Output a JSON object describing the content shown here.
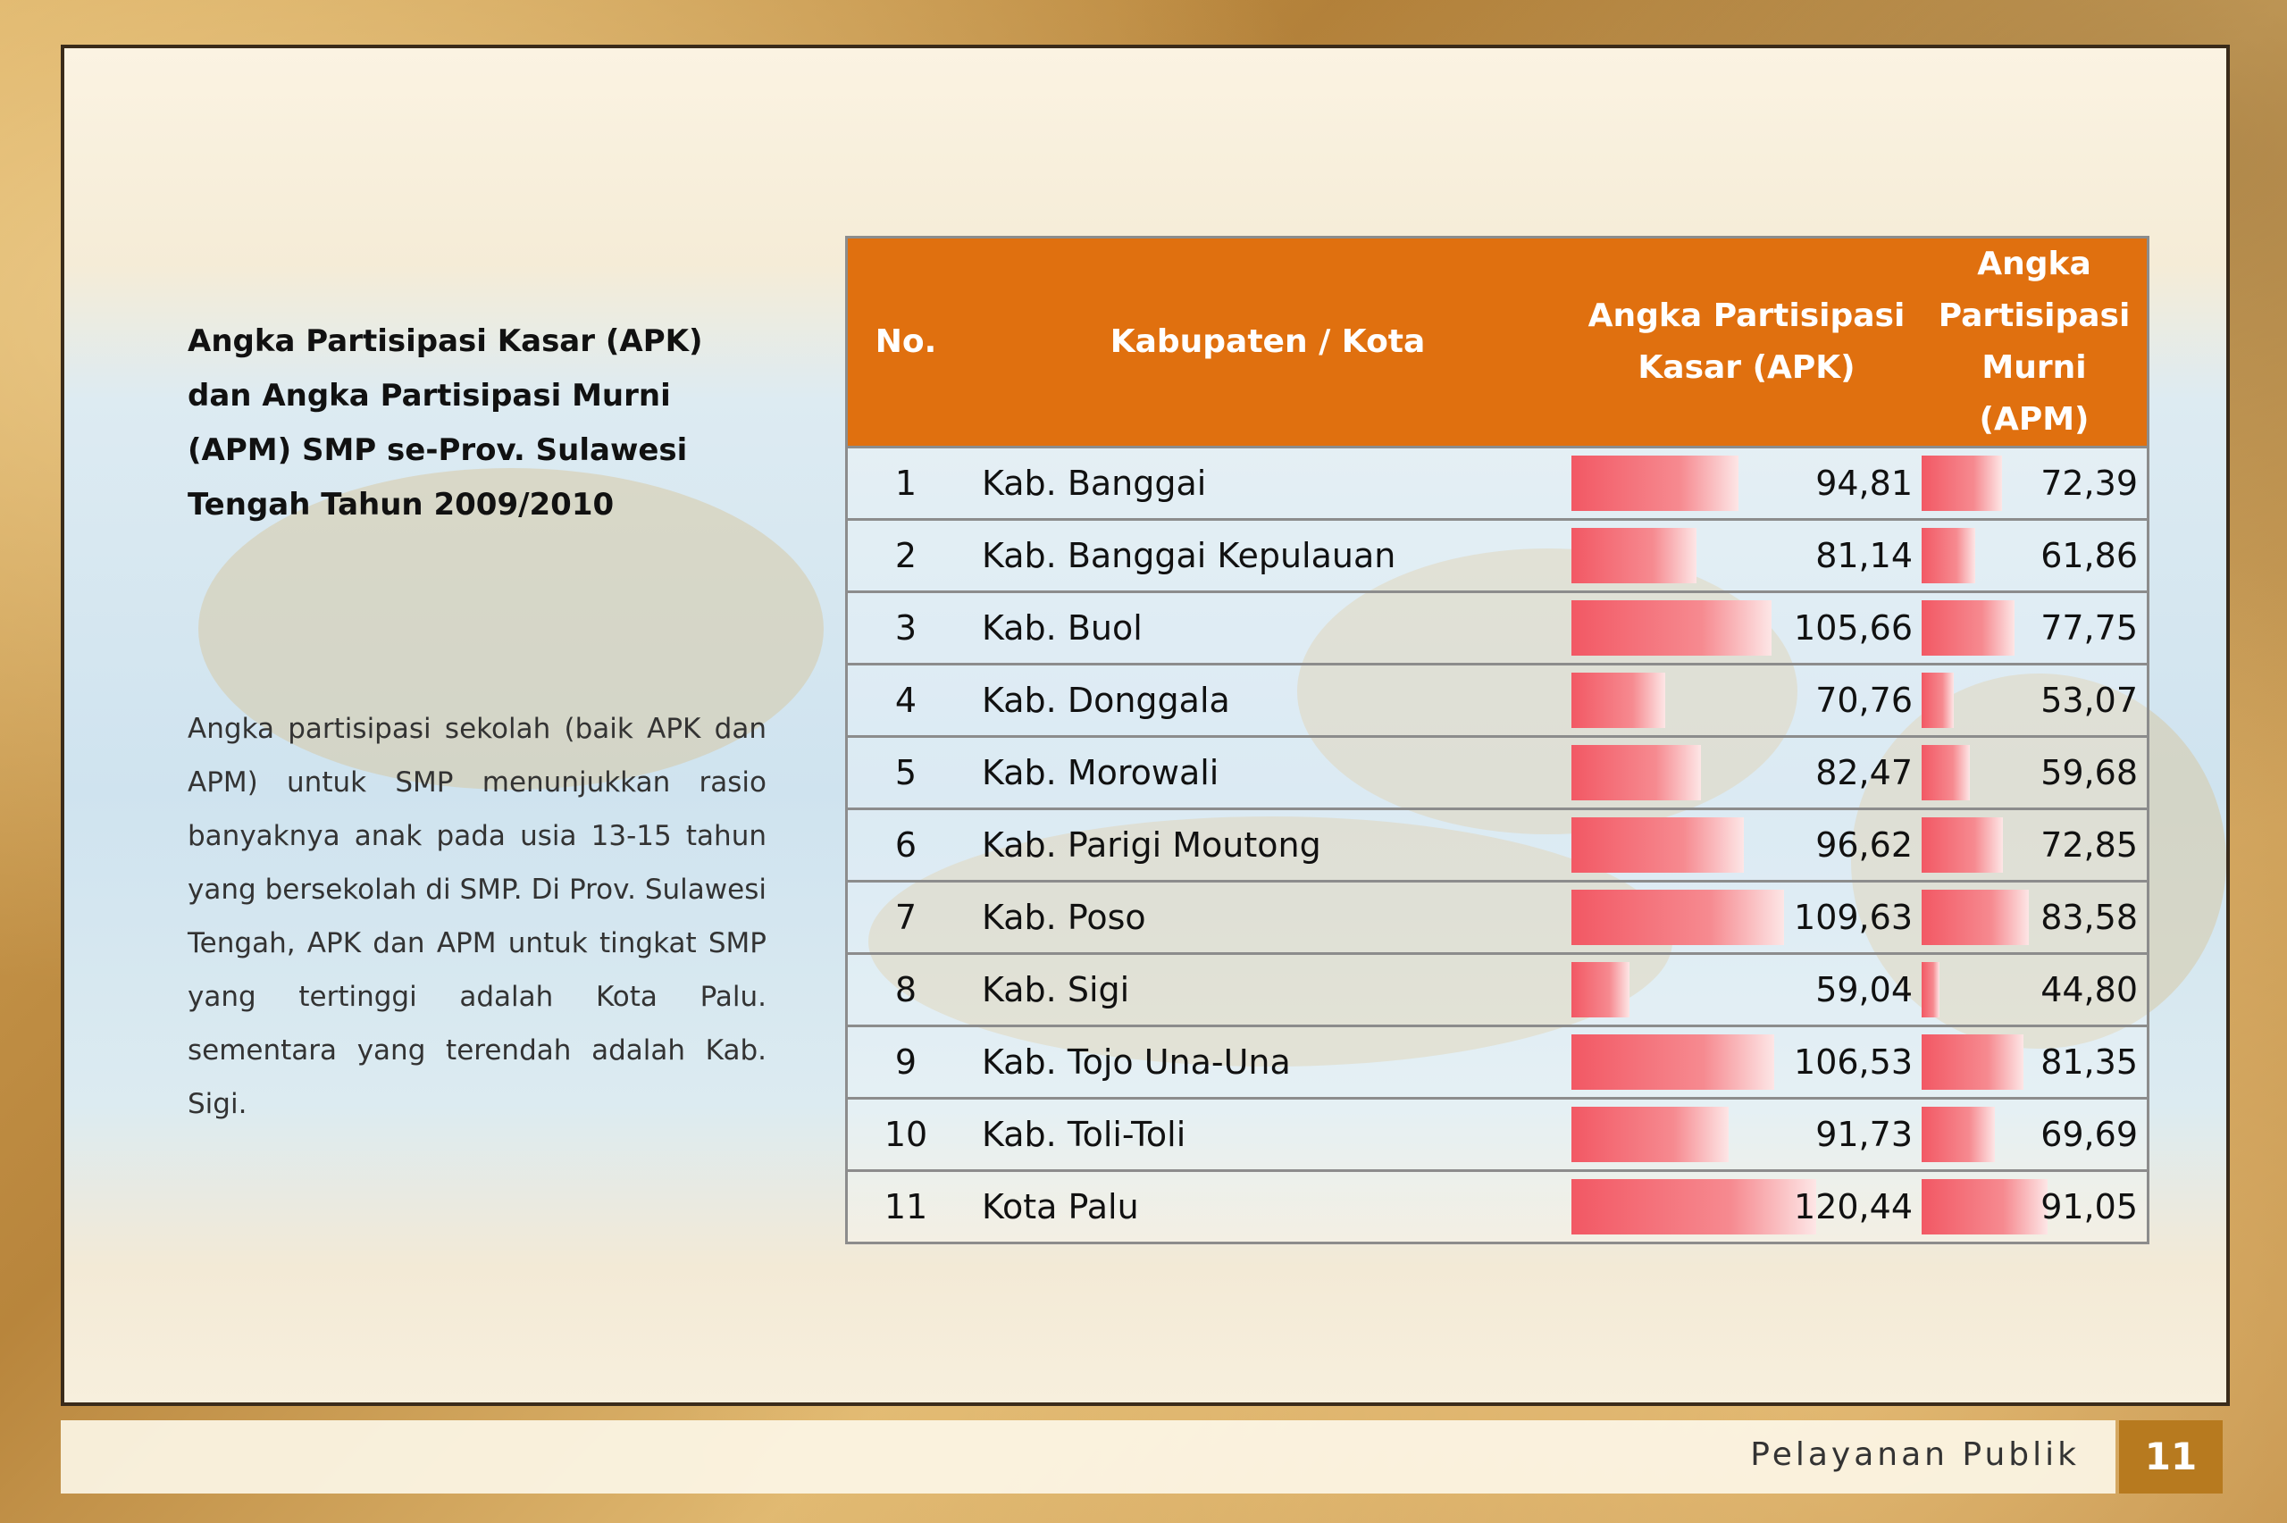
{
  "heading": "Angka Partisipasi Kasar (APK) dan Angka Partisipasi Murni (APM) SMP se-Prov. Sulawesi Tengah Tahun 2009/2010",
  "paragraph": "Angka partisipasi sekolah (baik APK dan APM) untuk SMP menunjukkan rasio banyaknya anak pada usia 13-15 tahun yang bersekolah di SMP. Di Prov. Sulawesi Tengah, APK dan APM untuk tingkat SMP yang tertinggi adalah Kota Palu. sementara yang terendah adalah Kab. Sigi.",
  "table": {
    "headers": {
      "no": "No.",
      "name": "Kabupaten / Kota",
      "apk_line1": "Angka Partisipasi",
      "apk_line2": "Kasar (APK)",
      "apm_line1": "Angka Partisipasi",
      "apm_line2": "Murni (APM)"
    },
    "bar_color": "#f25864",
    "header_color": "#e0700f",
    "rows": [
      {
        "no": "1",
        "name": "Kab. Banggai",
        "apk": "94,81",
        "apm": "72,39",
        "apk_v": 94.81,
        "apm_v": 72.39
      },
      {
        "no": "2",
        "name": "Kab. Banggai Kepulauan",
        "apk": "81,14",
        "apm": "61,86",
        "apk_v": 81.14,
        "apm_v": 61.86
      },
      {
        "no": "3",
        "name": "Kab. Buol",
        "apk": "105,66",
        "apm": "77,75",
        "apk_v": 105.66,
        "apm_v": 77.75
      },
      {
        "no": "4",
        "name": "Kab. Donggala",
        "apk": "70,76",
        "apm": "53,07",
        "apk_v": 70.76,
        "apm_v": 53.07
      },
      {
        "no": "5",
        "name": "Kab. Morowali",
        "apk": "82,47",
        "apm": "59,68",
        "apk_v": 82.47,
        "apm_v": 59.68
      },
      {
        "no": "6",
        "name": "Kab. Parigi Moutong",
        "apk": "96,62",
        "apm": "72,85",
        "apk_v": 96.62,
        "apm_v": 72.85
      },
      {
        "no": "7",
        "name": "Kab. Poso",
        "apk": "109,63",
        "apm": "83,58",
        "apk_v": 109.63,
        "apm_v": 83.58
      },
      {
        "no": "8",
        "name": "Kab. Sigi",
        "apk": "59,04",
        "apm": "44,80",
        "apk_v": 59.04,
        "apm_v": 44.8
      },
      {
        "no": "9",
        "name": "Kab. Tojo Una-Una",
        "apk": "106,53",
        "apm": "81,35",
        "apk_v": 106.53,
        "apm_v": 81.35
      },
      {
        "no": "10",
        "name": "Kab. Toli-Toli",
        "apk": "91,73",
        "apm": "69,69",
        "apk_v": 91.73,
        "apm_v": 69.69
      },
      {
        "no": "11",
        "name": "Kota Palu",
        "apk": "120,44",
        "apm": "91,05",
        "apk_v": 120.44,
        "apm_v": 91.05
      }
    ]
  },
  "footer": {
    "label": "Pelayanan Publik",
    "page": "11"
  }
}
